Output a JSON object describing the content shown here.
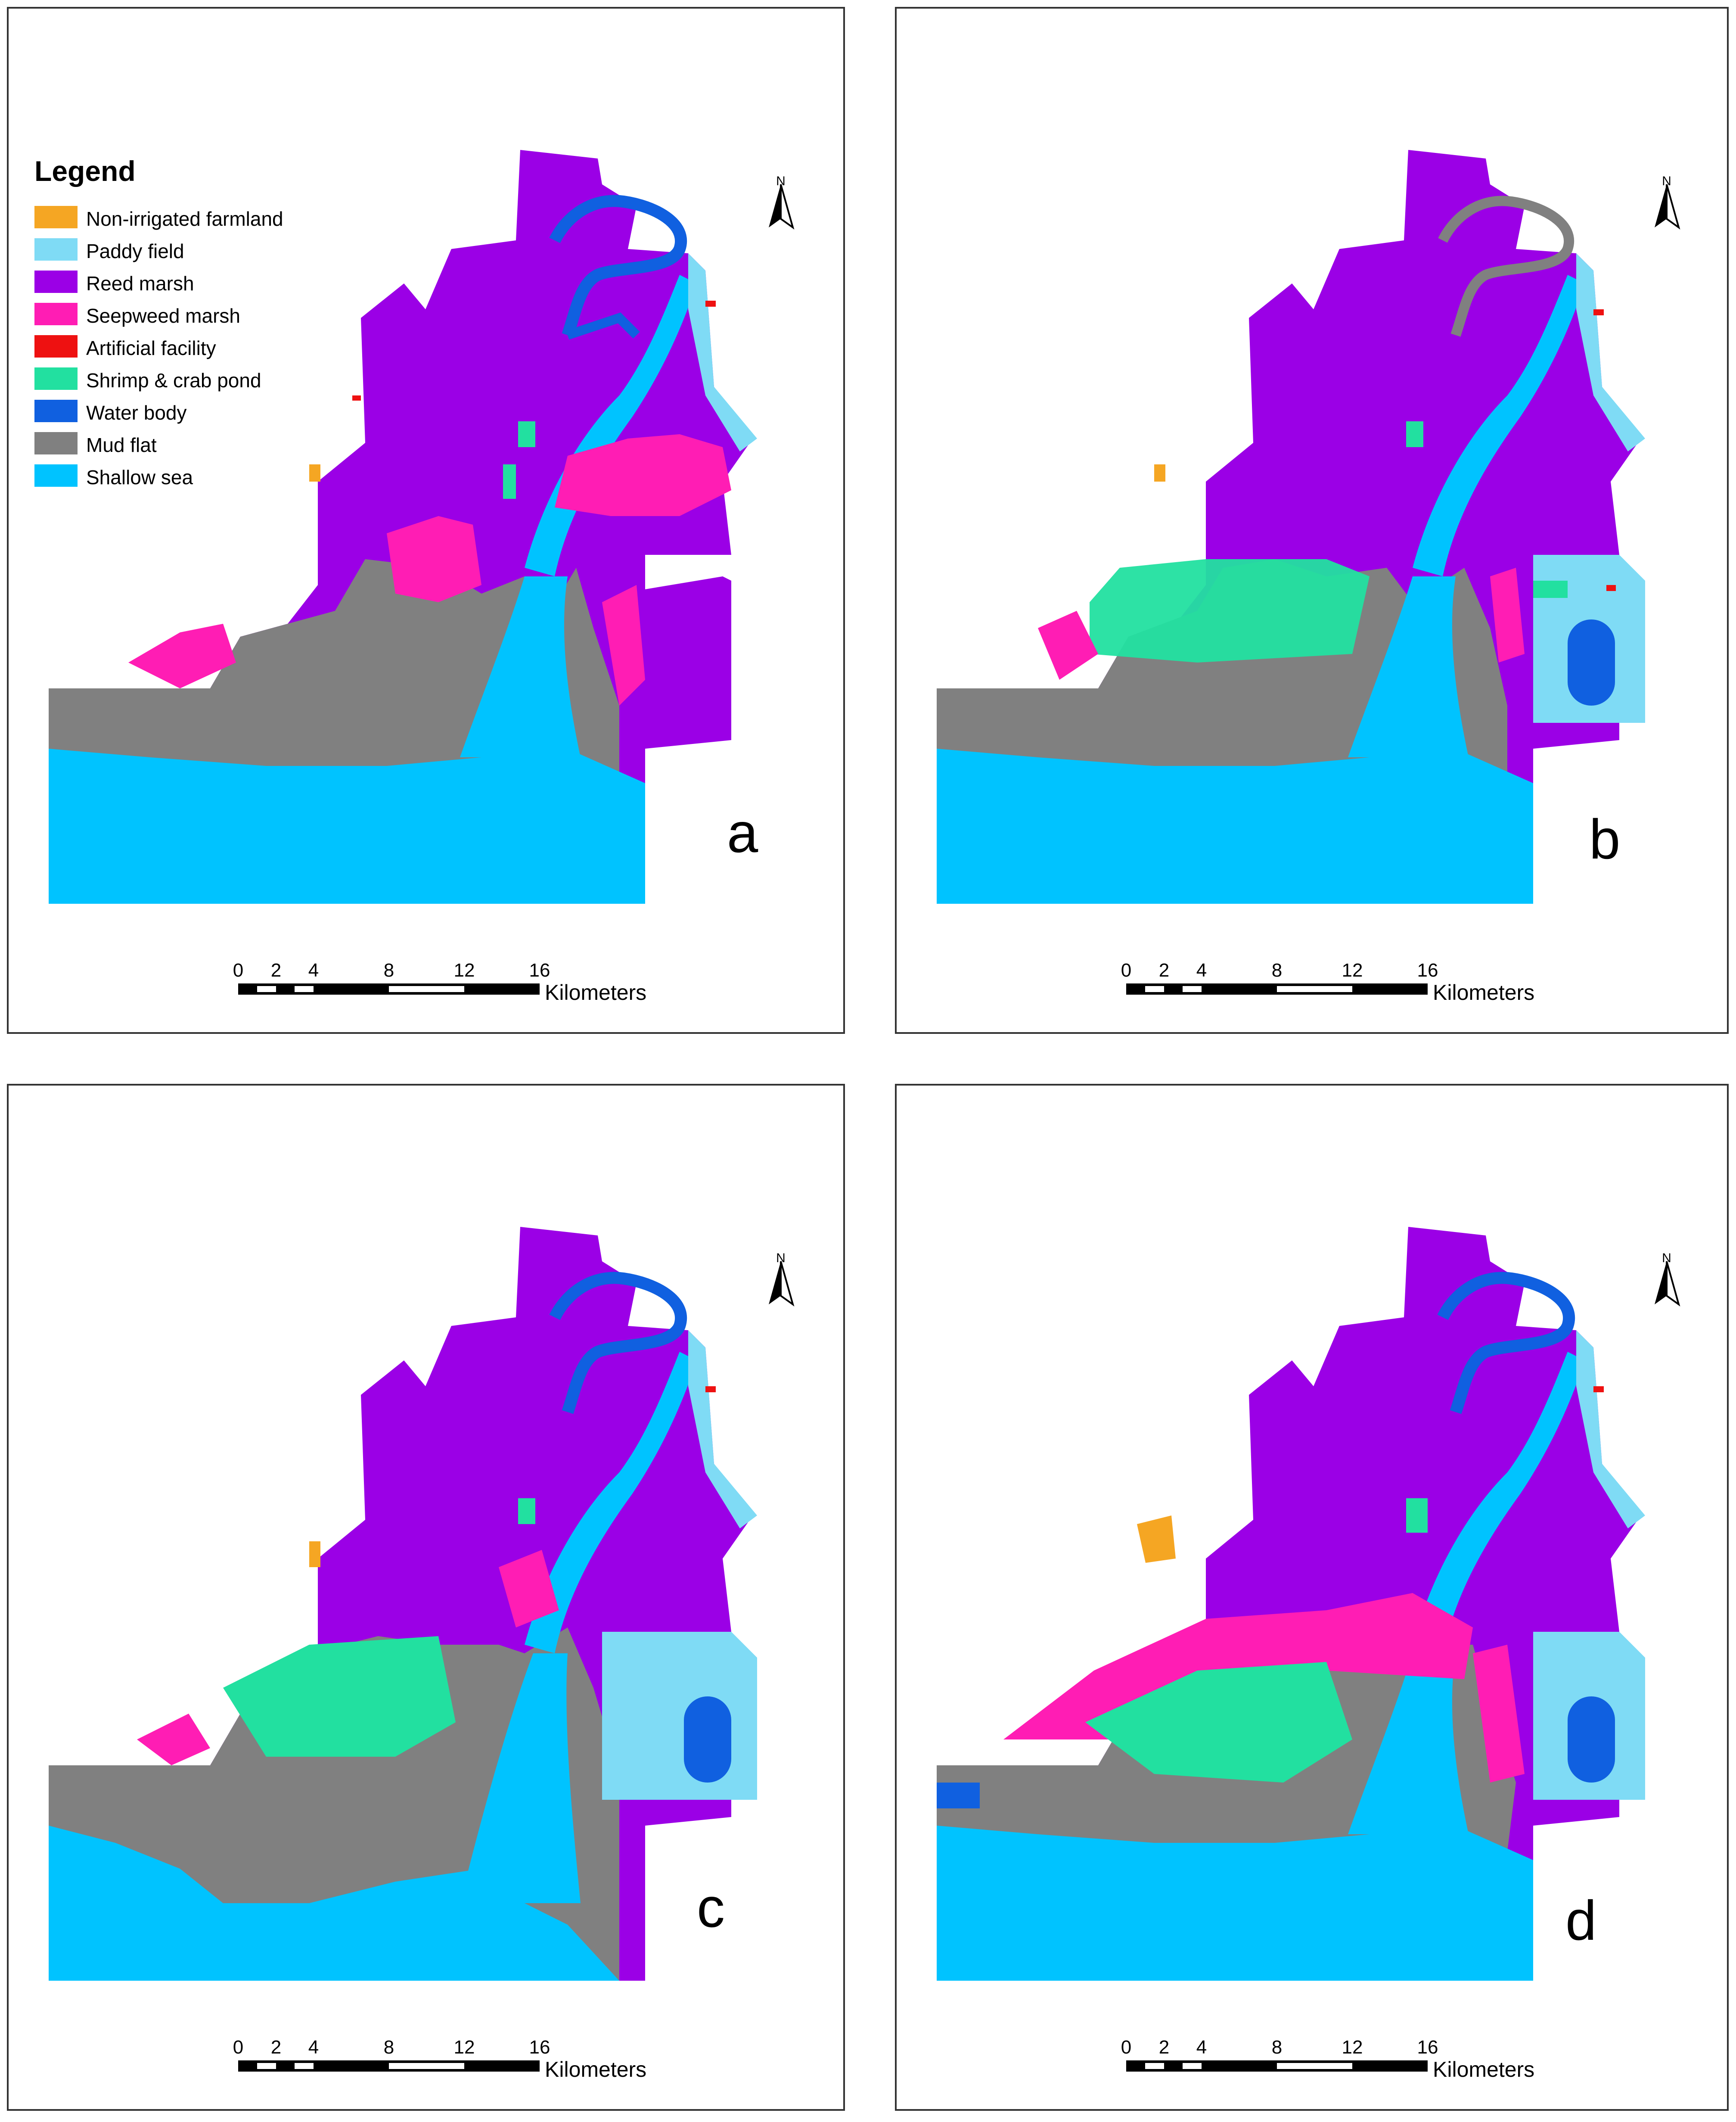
{
  "legend": {
    "title": "Legend",
    "items": [
      {
        "label": "Non-irrigated farmland",
        "color": "#F5A623"
      },
      {
        "label": "Paddy field",
        "color": "#7FDBF5"
      },
      {
        "label": "Reed marsh",
        "color": "#9B00E6"
      },
      {
        "label": "Seepweed marsh",
        "color": "#FF1DB4"
      },
      {
        "label": "Artificial facility",
        "color": "#EE1111"
      },
      {
        "label": "Shrimp & crab pond",
        "color": "#22E0A0"
      },
      {
        "label": "Water body",
        "color": "#1060E0"
      },
      {
        "label": "Mud flat",
        "color": "#808080"
      },
      {
        "label": "Shallow sea",
        "color": "#00C3FF"
      }
    ]
  },
  "north_arrow": "N",
  "north_arrow_icon": "north-arrow-icon",
  "scale_bar": {
    "ticks": [
      "0",
      "2",
      "4",
      "8",
      "12",
      "16"
    ],
    "unit": "Kilometers"
  },
  "panels": [
    {
      "letter": "a"
    },
    {
      "letter": "b"
    },
    {
      "letter": "c"
    },
    {
      "letter": "d"
    }
  ]
}
